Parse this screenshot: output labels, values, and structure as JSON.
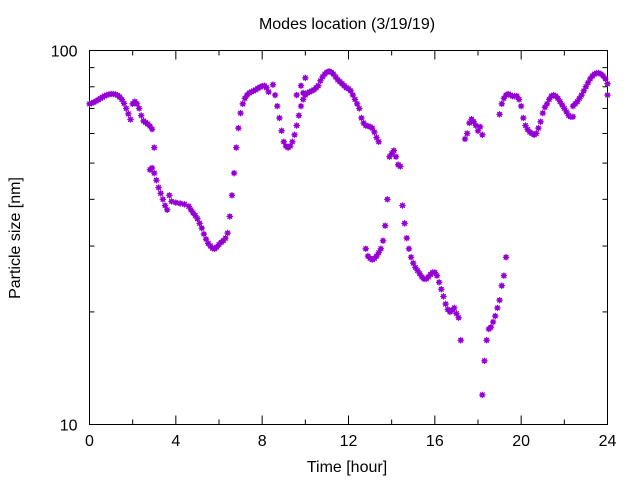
{
  "chart_data": {
    "type": "scatter",
    "title": "Modes location (3/19/19)",
    "xlabel": "Time [hour]",
    "ylabel": "Particle size [nm]",
    "xlim": [
      0,
      24
    ],
    "ylim": [
      10,
      100
    ],
    "yscale": "log",
    "grid": false,
    "legend": "none",
    "marker_color": "#9400d3",
    "x_ticks": [
      0,
      4,
      8,
      12,
      16,
      20,
      24
    ],
    "x_tick_labels": [
      "0",
      "4",
      "8",
      "12",
      "16",
      "20",
      "24"
    ],
    "y_ticks": [
      10,
      100
    ],
    "y_tick_labels": [
      "10",
      "100"
    ],
    "series": [
      {
        "segments": [
          [
            [
              0,
              72
            ],
            [
              0.1,
              72.3
            ],
            [
              0.2,
              72.7
            ],
            [
              0.3,
              73.2
            ],
            [
              0.4,
              73.8
            ],
            [
              0.5,
              74.4
            ],
            [
              0.6,
              75
            ],
            [
              0.7,
              75.6
            ],
            [
              0.8,
              76
            ],
            [
              0.9,
              76.3
            ],
            [
              1,
              76.5
            ],
            [
              1.1,
              76.5
            ],
            [
              1.2,
              76.3
            ],
            [
              1.3,
              75.9
            ],
            [
              1.4,
              75.1
            ],
            [
              1.5,
              73.9
            ],
            [
              1.6,
              72.2
            ],
            [
              1.7,
              70
            ],
            [
              1.8,
              67.7
            ],
            [
              1.9,
              65.4
            ],
            [
              2.0,
              72
            ],
            [
              2.1,
              73
            ],
            [
              2.2,
              72
            ],
            [
              2.3,
              70
            ],
            [
              2.4,
              67
            ],
            [
              2.5,
              64.8
            ],
            [
              2.6,
              64.2
            ],
            [
              2.7,
              63.6
            ],
            [
              2.8,
              62.8
            ],
            [
              2.9,
              61.6
            ],
            [
              3.0,
              55
            ]
          ],
          [
            [
              2.8,
              48
            ],
            [
              2.9,
              48.5
            ],
            [
              3.0,
              47
            ],
            [
              3.1,
              45
            ],
            [
              3.2,
              43
            ],
            [
              3.3,
              41.5
            ],
            [
              3.4,
              40
            ],
            [
              3.5,
              38.5
            ],
            [
              3.6,
              37.5
            ],
            [
              3.7,
              41
            ],
            [
              3.8,
              39.5
            ],
            [
              4.0,
              39.2
            ],
            [
              4.2,
              39
            ],
            [
              4.4,
              38.8
            ],
            [
              4.6,
              38.3
            ],
            [
              4.7,
              37.5
            ],
            [
              4.8,
              36.8
            ],
            [
              4.9,
              36.2
            ],
            [
              5.0,
              35.5
            ],
            [
              5.1,
              34.5
            ],
            [
              5.2,
              33.5
            ],
            [
              5.3,
              32.3
            ],
            [
              5.4,
              31.3
            ],
            [
              5.5,
              30.5
            ],
            [
              5.6,
              30
            ],
            [
              5.7,
              29.6
            ],
            [
              5.8,
              29.5
            ],
            [
              5.9,
              29.8
            ],
            [
              6.0,
              30.3
            ],
            [
              6.1,
              30.7
            ],
            [
              6.2,
              31
            ],
            [
              6.3,
              31.5
            ],
            [
              6.4,
              32.5
            ],
            [
              6.5,
              36
            ],
            [
              6.6,
              41
            ],
            [
              6.7,
              47
            ],
            [
              6.8,
              55
            ],
            [
              6.9,
              62
            ],
            [
              7.0,
              68
            ],
            [
              7.1,
              72
            ],
            [
              7.2,
              74.5
            ],
            [
              7.3,
              76
            ],
            [
              7.4,
              77
            ],
            [
              7.5,
              77.5
            ],
            [
              7.6,
              78
            ],
            [
              7.7,
              78.5
            ],
            [
              7.8,
              79.2
            ],
            [
              7.9,
              79.8
            ],
            [
              8.0,
              80.3
            ],
            [
              8.1,
              80.5
            ],
            [
              8.2,
              79.5
            ],
            [
              8.3,
              77.5
            ],
            [
              8.5,
              81
            ],
            [
              8.6,
              76
            ],
            [
              8.7,
              71
            ],
            [
              8.8,
              66
            ],
            [
              8.9,
              61
            ],
            [
              9.0,
              57
            ],
            [
              9.1,
              55.5
            ],
            [
              9.2,
              55
            ],
            [
              9.3,
              55.5
            ],
            [
              9.4,
              57
            ],
            [
              9.5,
              59.5
            ],
            [
              9.6,
              63
            ],
            [
              9.7,
              67
            ],
            [
              9.8,
              71
            ],
            [
              9.9,
              74
            ],
            [
              10.0,
              76
            ],
            [
              10.1,
              77
            ],
            [
              10.2,
              77.5
            ],
            [
              10.3,
              78
            ],
            [
              10.4,
              78.5
            ],
            [
              10.5,
              79.5
            ],
            [
              10.6,
              80.5
            ],
            [
              10.7,
              83
            ],
            [
              10.8,
              85
            ],
            [
              10.9,
              86.5
            ],
            [
              11.0,
              87.5
            ],
            [
              11.1,
              88
            ],
            [
              11.2,
              87.5
            ],
            [
              11.3,
              86.5
            ],
            [
              11.4,
              85
            ],
            [
              11.5,
              83.5
            ],
            [
              11.6,
              82.5
            ],
            [
              11.7,
              81.5
            ],
            [
              11.8,
              80.5
            ],
            [
              11.9,
              79.5
            ],
            [
              12.0,
              79
            ],
            [
              12.1,
              78
            ],
            [
              12.2,
              76
            ],
            [
              12.3,
              74
            ],
            [
              12.4,
              72
            ],
            [
              12.5,
              70
            ],
            [
              12.6,
              66
            ],
            [
              12.7,
              64
            ],
            [
              12.8,
              63
            ],
            [
              12.9,
              62.8
            ],
            [
              13.0,
              62.5
            ],
            [
              13.1,
              62
            ],
            [
              13.2,
              60.5
            ],
            [
              13.3,
              58.5
            ],
            [
              13.4,
              57
            ],
            [
              10.0,
              84.5
            ],
            [
              9.8,
              80.5
            ],
            [
              9.9,
              77
            ],
            [
              9.6,
              76
            ]
          ],
          [
            [
              12.8,
              29.5
            ],
            [
              12.9,
              28.2
            ],
            [
              13.0,
              27.8
            ],
            [
              13.1,
              27.6
            ],
            [
              13.2,
              27.8
            ],
            [
              13.3,
              28.2
            ],
            [
              13.4,
              28.8
            ],
            [
              13.5,
              29.5
            ],
            [
              13.6,
              31
            ],
            [
              13.7,
              34
            ],
            [
              13.8,
              40
            ],
            [
              13.9,
              52
            ],
            [
              14.0,
              53
            ],
            [
              14.1,
              54
            ],
            [
              14.2,
              52
            ],
            [
              14.3,
              49.5
            ],
            [
              14.4,
              49
            ],
            [
              14.5,
              38.5
            ],
            [
              14.6,
              34.5
            ],
            [
              14.7,
              31.5
            ],
            [
              14.8,
              29.5
            ],
            [
              14.9,
              28
            ],
            [
              15.0,
              27
            ],
            [
              15.1,
              26.3
            ],
            [
              15.2,
              25.8
            ],
            [
              15.3,
              25.3
            ],
            [
              15.4,
              24.8
            ],
            [
              15.5,
              24.5
            ],
            [
              15.6,
              24.5
            ],
            [
              15.7,
              24.8
            ],
            [
              15.8,
              25.2
            ],
            [
              15.9,
              25.5
            ],
            [
              16.0,
              25.5
            ],
            [
              16.1,
              25
            ],
            [
              16.2,
              24
            ],
            [
              16.3,
              23
            ],
            [
              16.4,
              22
            ],
            [
              16.5,
              21
            ],
            [
              16.6,
              20.3
            ],
            [
              16.7,
              20
            ],
            [
              16.8,
              20.2
            ],
            [
              16.9,
              20.5
            ],
            [
              17.0,
              19.8
            ],
            [
              17.1,
              19.3
            ],
            [
              17.2,
              16.8
            ]
          ],
          [
            [
              17.4,
              58
            ],
            [
              17.5,
              60
            ],
            [
              17.6,
              64
            ],
            [
              17.7,
              65.5
            ],
            [
              17.8,
              64.5
            ],
            [
              17.9,
              63
            ],
            [
              18.0,
              61
            ],
            [
              18.1,
              62.5
            ],
            [
              18.2,
              59.5
            ]
          ],
          [
            [
              18.2,
              12
            ],
            [
              18.3,
              14.8
            ],
            [
              18.4,
              16.8
            ],
            [
              18.5,
              18
            ],
            [
              18.6,
              18.2
            ],
            [
              18.7,
              18.8
            ],
            [
              18.8,
              19.5
            ],
            [
              18.9,
              20.5
            ],
            [
              19.0,
              21.5
            ],
            [
              19.1,
              23.5
            ],
            [
              19.2,
              25
            ],
            [
              19.3,
              28
            ]
          ],
          [
            [
              19.0,
              67.5
            ],
            [
              19.1,
              72
            ],
            [
              19.2,
              74.5
            ],
            [
              19.3,
              76
            ],
            [
              19.4,
              76.5
            ],
            [
              19.5,
              76
            ],
            [
              19.6,
              75.5
            ],
            [
              19.7,
              75.5
            ],
            [
              19.8,
              75.5
            ],
            [
              19.9,
              74
            ],
            [
              20.0,
              71
            ],
            [
              20.1,
              66
            ],
            [
              20.2,
              63
            ],
            [
              20.3,
              61.5
            ],
            [
              20.4,
              60.5
            ],
            [
              20.5,
              60
            ],
            [
              20.6,
              59.5
            ],
            [
              20.7,
              60
            ],
            [
              20.8,
              62
            ],
            [
              20.9,
              64.5
            ],
            [
              21.0,
              68
            ],
            [
              21.1,
              70.5
            ],
            [
              21.2,
              72
            ],
            [
              21.3,
              74
            ],
            [
              21.4,
              75.5
            ],
            [
              21.5,
              76
            ],
            [
              21.6,
              75.5
            ],
            [
              21.7,
              74.5
            ],
            [
              21.8,
              73
            ],
            [
              21.9,
              71.5
            ],
            [
              22.0,
              70
            ],
            [
              22.1,
              68.5
            ],
            [
              22.2,
              67
            ],
            [
              22.3,
              66.5
            ],
            [
              22.4,
              66.5
            ],
            [
              22.4,
              71
            ],
            [
              22.5,
              72
            ],
            [
              22.6,
              73
            ],
            [
              22.7,
              74.5
            ],
            [
              22.8,
              76
            ],
            [
              22.9,
              78
            ],
            [
              23.0,
              80
            ],
            [
              23.1,
              82
            ],
            [
              23.2,
              84
            ],
            [
              23.3,
              85.5
            ],
            [
              23.4,
              86.5
            ],
            [
              23.5,
              87
            ],
            [
              23.6,
              87
            ],
            [
              23.7,
              86.5
            ],
            [
              23.8,
              85.5
            ],
            [
              23.9,
              84
            ],
            [
              24.0,
              81.5
            ],
            [
              24.0,
              76
            ]
          ]
        ]
      }
    ]
  }
}
